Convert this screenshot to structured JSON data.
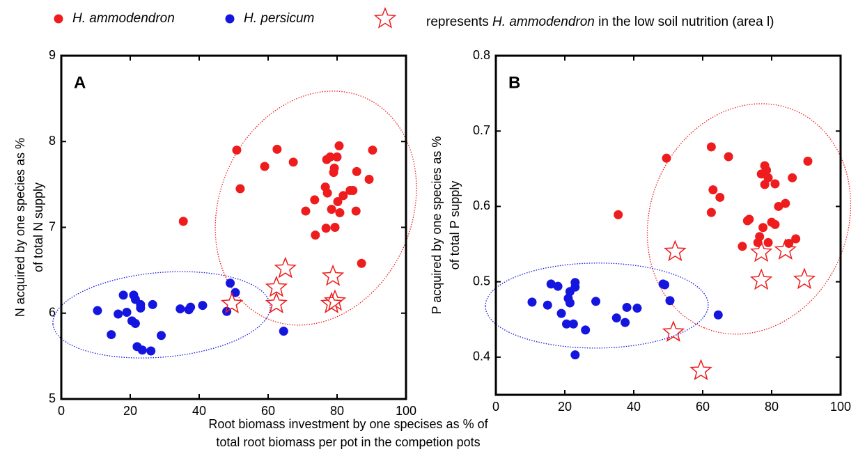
{
  "legend": [
    {
      "label": "H. ammodendron",
      "marker": "circle",
      "color": "#ee1c1c"
    },
    {
      "label": "H. persicum",
      "marker": "circle",
      "color": "#1515e0"
    },
    {
      "label": [
        "represents ",
        "H. ammodendron",
        " in the low soil nutrition (area l)"
      ],
      "marker": "star",
      "color": "#ee1c1c"
    }
  ],
  "xlabel": [
    "Root biomass investment by one specises as % of",
    "total root biomass per pot in the competion pots"
  ],
  "chart_data": [
    {
      "type": "scatter",
      "panel_label": "A",
      "ylabel": [
        "N acquired by one species as %",
        "of total N supply"
      ],
      "xlim": [
        0,
        100
      ],
      "xticks": [
        0,
        20,
        40,
        60,
        80,
        100
      ],
      "ylim": [
        5,
        9
      ],
      "yticks": [
        5,
        6,
        7,
        8,
        9
      ],
      "series": [
        {
          "color": "#ee1c1c",
          "marker": "circle",
          "x": [
            35.4,
            50.9,
            51.9,
            59,
            62.6,
            67.3,
            70.9,
            73.5,
            73.7,
            76.6,
            77,
            77.2,
            76.8,
            78,
            78.4,
            79,
            79.4,
            79.2,
            80,
            80.6,
            80.8,
            80.2,
            81.8,
            83.8,
            84.6,
            85.7,
            85.5,
            87.1,
            89.3,
            90.3
          ],
          "values": [
            7.07,
            7.9,
            7.45,
            7.71,
            7.91,
            7.76,
            7.19,
            7.32,
            6.91,
            7.47,
            7.79,
            7.4,
            6.99,
            7.82,
            7.21,
            7.64,
            7.0,
            7.69,
            7.82,
            7.95,
            7.17,
            7.3,
            7.37,
            7.43,
            7.43,
            7.65,
            7.19,
            6.58,
            7.56,
            7.9
          ]
        },
        {
          "color": "#1515e0",
          "marker": "circle",
          "x": [
            10.5,
            14.5,
            16.5,
            18,
            19,
            20.5,
            21,
            21.5,
            21.5,
            22,
            23,
            23,
            23.5,
            26,
            26.5,
            29,
            34.5,
            37,
            37.5,
            41,
            48,
            49,
            50.5,
            64.5
          ],
          "values": [
            6.03,
            5.75,
            5.99,
            6.21,
            6.01,
            5.91,
            6.21,
            5.88,
            6.16,
            5.61,
            6.06,
            6.1,
            5.57,
            5.56,
            6.1,
            5.74,
            6.05,
            6.04,
            6.07,
            6.09,
            6.02,
            6.35,
            6.24,
            5.79
          ]
        },
        {
          "color": "#ee1c1c",
          "marker": "star",
          "x": [
            49.5,
            62.4,
            62.4,
            65,
            78.8,
            78.4,
            79.4
          ],
          "values": [
            6.11,
            6.3,
            6.11,
            6.52,
            6.43,
            6.11,
            6.14
          ]
        }
      ]
    },
    {
      "type": "scatter",
      "panel_label": "B",
      "ylabel": [
        "P acquired by one species as %",
        "of total P supply"
      ],
      "xlim": [
        0,
        100
      ],
      "xticks": [
        0,
        20,
        40,
        60,
        80,
        100
      ],
      "ylim": [
        0.35,
        0.8
      ],
      "yticks": [
        0.4,
        0.5,
        0.6,
        0.7,
        0.8
      ],
      "series": [
        {
          "color": "#ee1c1c",
          "marker": "circle",
          "x": [
            35.5,
            49.5,
            62.5,
            62.5,
            63,
            65,
            67.5,
            71.5,
            73,
            73.5,
            76,
            76.5,
            77,
            77.5,
            78,
            78,
            78.5,
            79,
            79,
            80,
            81,
            81,
            82,
            84,
            85,
            86,
            87,
            90.5
          ],
          "values": [
            0.589,
            0.664,
            0.679,
            0.592,
            0.622,
            0.612,
            0.666,
            0.547,
            0.581,
            0.583,
            0.552,
            0.56,
            0.643,
            0.572,
            0.629,
            0.654,
            0.648,
            0.552,
            0.638,
            0.579,
            0.63,
            0.576,
            0.6,
            0.604,
            0.551,
            0.638,
            0.557,
            0.66
          ]
        },
        {
          "color": "#1515e0",
          "marker": "circle",
          "x": [
            10.5,
            15,
            16,
            18,
            19,
            20.5,
            21,
            21.5,
            21.5,
            22.5,
            23,
            23,
            23,
            26,
            29,
            35,
            37.5,
            38,
            41,
            48.5,
            49,
            50.5,
            64.5
          ],
          "values": [
            0.473,
            0.469,
            0.497,
            0.494,
            0.458,
            0.444,
            0.478,
            0.487,
            0.472,
            0.444,
            0.493,
            0.499,
            0.403,
            0.436,
            0.474,
            0.452,
            0.446,
            0.466,
            0.465,
            0.497,
            0.496,
            0.475,
            0.456
          ]
        },
        {
          "color": "#ee1c1c",
          "marker": "star",
          "x": [
            52,
            51.5,
            59.5,
            77,
            77,
            84,
            89.5
          ],
          "values": [
            0.54,
            0.433,
            0.382,
            0.539,
            0.502,
            0.542,
            0.503
          ]
        }
      ]
    }
  ]
}
